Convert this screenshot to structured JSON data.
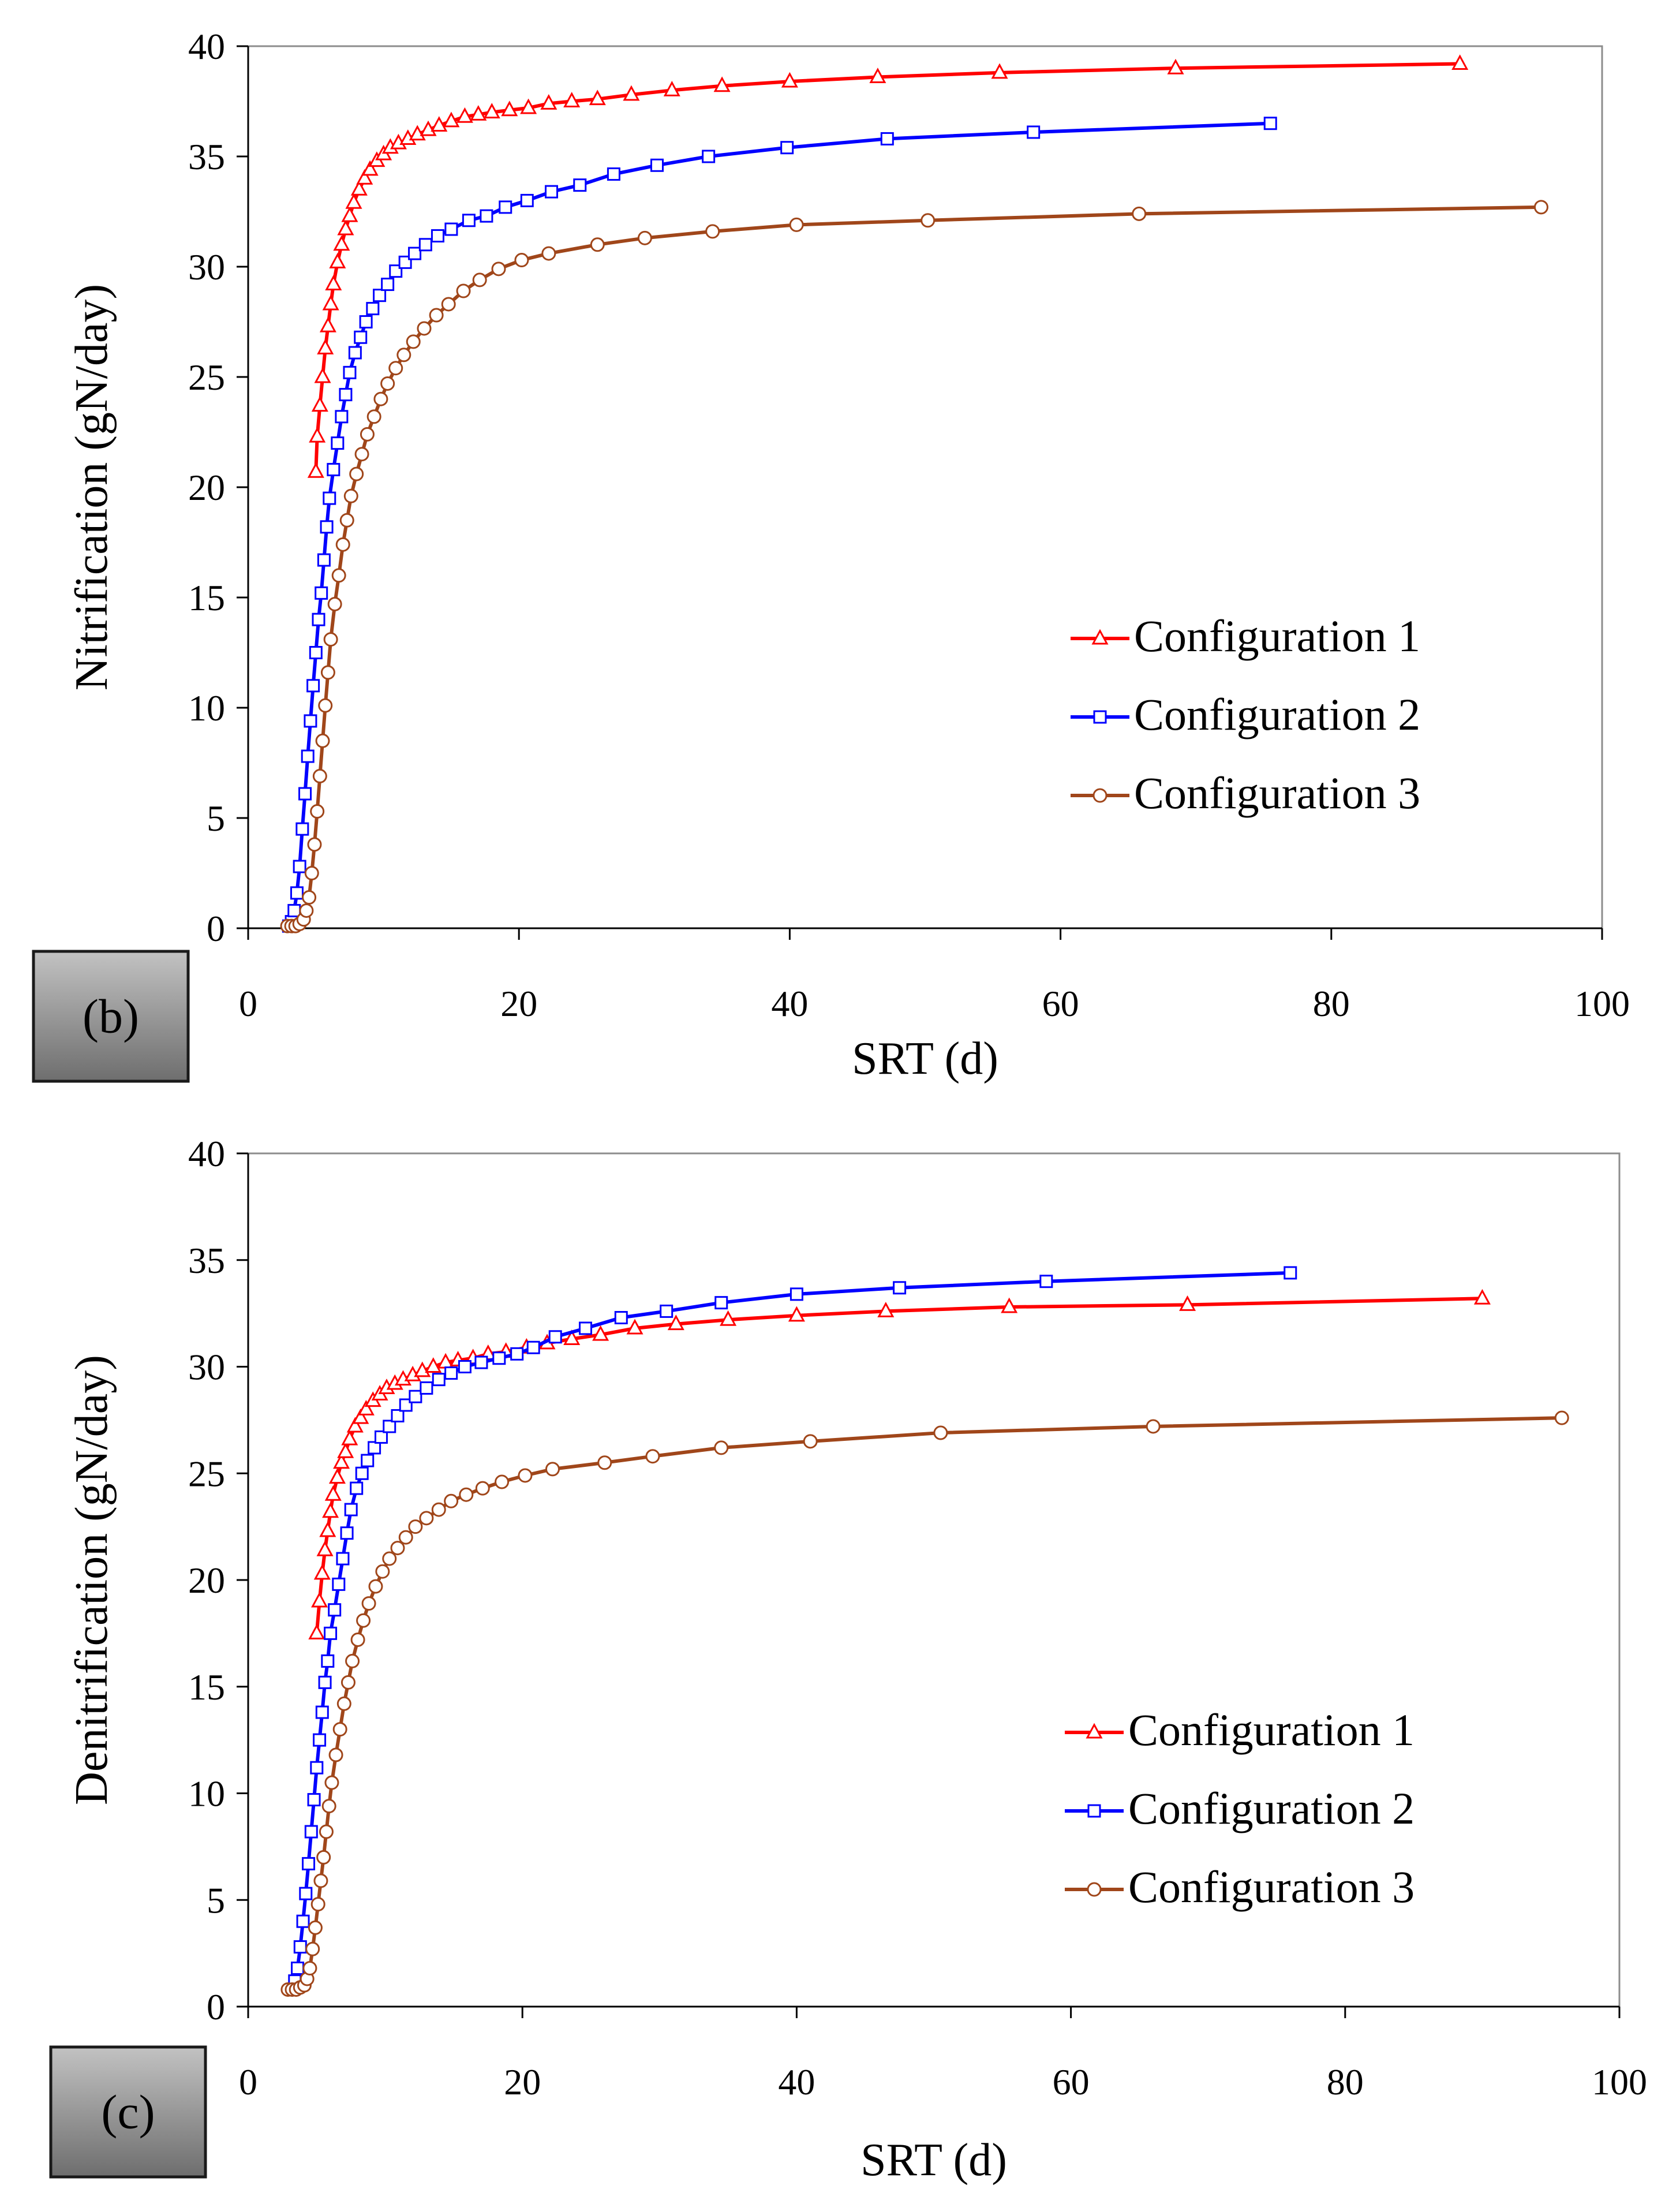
{
  "chart_data": [
    {
      "type": "line",
      "panel_label": "(b)",
      "xlabel": "SRT (d)",
      "ylabel": "Nitrification (gN/day)",
      "xlim": [
        0,
        100
      ],
      "ylim": [
        0,
        40
      ],
      "xticks": [
        0,
        20,
        40,
        60,
        80,
        100
      ],
      "yticks": [
        0,
        5,
        10,
        15,
        20,
        25,
        30,
        35,
        40
      ],
      "grid": false,
      "legend_position": "center-right",
      "series": [
        {
          "name": "Configuration 1",
          "color": "#ff0000",
          "marker": "triangle",
          "x": [
            5.0,
            5.1,
            5.3,
            5.5,
            5.7,
            5.9,
            6.1,
            6.3,
            6.6,
            6.9,
            7.2,
            7.5,
            7.8,
            8.2,
            8.6,
            9.0,
            9.5,
            10.0,
            10.5,
            11.1,
            11.8,
            12.5,
            13.3,
            14.1,
            15.0,
            16.0,
            17.0,
            18.0,
            19.3,
            20.7,
            22.2,
            23.9,
            25.8,
            28.3,
            31.3,
            35.0,
            40.0,
            46.5,
            55.5,
            68.5,
            89.5
          ],
          "y": [
            20.7,
            22.3,
            23.7,
            25.0,
            26.3,
            27.3,
            28.3,
            29.2,
            30.2,
            31.0,
            31.7,
            32.3,
            32.9,
            33.5,
            34.0,
            34.4,
            34.8,
            35.1,
            35.4,
            35.6,
            35.8,
            36.0,
            36.2,
            36.4,
            36.6,
            36.8,
            36.9,
            37.0,
            37.1,
            37.2,
            37.4,
            37.5,
            37.6,
            37.8,
            38.0,
            38.2,
            38.4,
            38.6,
            38.8,
            39.0,
            39.2
          ]
        },
        {
          "name": "Configuration 2",
          "color": "#0000ff",
          "marker": "square",
          "x": [
            3.0,
            3.2,
            3.4,
            3.6,
            3.8,
            4.0,
            4.2,
            4.4,
            4.6,
            4.8,
            5.0,
            5.2,
            5.4,
            5.6,
            5.8,
            6.0,
            6.3,
            6.6,
            6.9,
            7.2,
            7.5,
            7.9,
            8.3,
            8.7,
            9.2,
            9.7,
            10.3,
            10.9,
            11.6,
            12.3,
            13.1,
            14.0,
            15.0,
            16.3,
            17.6,
            19.0,
            20.6,
            22.4,
            24.5,
            27.0,
            30.2,
            34.0,
            39.8,
            47.2,
            58.0,
            75.5
          ],
          "y": [
            0.1,
            0.3,
            0.8,
            1.6,
            2.8,
            4.5,
            6.1,
            7.8,
            9.4,
            11.0,
            12.5,
            14.0,
            15.2,
            16.7,
            18.2,
            19.5,
            20.8,
            22.0,
            23.2,
            24.2,
            25.2,
            26.1,
            26.8,
            27.5,
            28.1,
            28.7,
            29.2,
            29.8,
            30.2,
            30.6,
            31.0,
            31.4,
            31.7,
            32.1,
            32.3,
            32.7,
            33.0,
            33.4,
            33.7,
            34.2,
            34.6,
            35.0,
            35.4,
            35.8,
            36.1,
            36.5
          ]
        },
        {
          "name": "Configuration 3",
          "color": "#a0461a",
          "marker": "circle",
          "x": [
            2.9,
            3.2,
            3.5,
            3.8,
            4.1,
            4.3,
            4.5,
            4.7,
            4.9,
            5.1,
            5.3,
            5.5,
            5.7,
            5.9,
            6.1,
            6.4,
            6.7,
            7.0,
            7.3,
            7.6,
            8.0,
            8.4,
            8.8,
            9.3,
            9.8,
            10.3,
            10.9,
            11.5,
            12.2,
            13.0,
            13.9,
            14.8,
            15.9,
            17.1,
            18.5,
            20.2,
            22.2,
            25.8,
            29.3,
            34.3,
            40.5,
            50.2,
            65.8,
            95.5
          ],
          "y": [
            0.1,
            0.1,
            0.1,
            0.2,
            0.4,
            0.8,
            1.4,
            2.5,
            3.8,
            5.3,
            6.9,
            8.5,
            10.1,
            11.6,
            13.1,
            14.7,
            16.0,
            17.4,
            18.5,
            19.6,
            20.6,
            21.5,
            22.4,
            23.2,
            24.0,
            24.7,
            25.4,
            26.0,
            26.6,
            27.2,
            27.8,
            28.3,
            28.9,
            29.4,
            29.9,
            30.3,
            30.6,
            31.0,
            31.3,
            31.6,
            31.9,
            32.1,
            32.4,
            32.7
          ]
        }
      ]
    },
    {
      "type": "line",
      "panel_label": "(c)",
      "xlabel": "SRT (d)",
      "ylabel": "Denitrification (gN/day)",
      "xlim": [
        0,
        100
      ],
      "ylim": [
        0,
        40
      ],
      "xticks": [
        0,
        20,
        40,
        60,
        80,
        100
      ],
      "yticks": [
        0,
        5,
        10,
        15,
        20,
        25,
        30,
        35,
        40
      ],
      "grid": false,
      "legend_position": "center-right",
      "series": [
        {
          "name": "Configuration 1",
          "color": "#ff0000",
          "marker": "triangle",
          "x": [
            5.0,
            5.2,
            5.4,
            5.6,
            5.8,
            6.0,
            6.2,
            6.5,
            6.8,
            7.1,
            7.4,
            7.8,
            8.2,
            8.6,
            9.1,
            9.6,
            10.1,
            10.7,
            11.3,
            12.0,
            12.7,
            13.5,
            14.4,
            15.3,
            16.4,
            17.5,
            18.8,
            20.3,
            21.8,
            23.6,
            25.7,
            28.2,
            31.2,
            35.0,
            40.0,
            46.5,
            55.5,
            68.5,
            90.0
          ],
          "y": [
            17.5,
            19.0,
            20.3,
            21.4,
            22.3,
            23.2,
            24.0,
            24.8,
            25.5,
            26.0,
            26.6,
            27.2,
            27.6,
            28.0,
            28.4,
            28.7,
            29.0,
            29.2,
            29.4,
            29.6,
            29.8,
            30.0,
            30.2,
            30.3,
            30.4,
            30.6,
            30.7,
            30.9,
            31.1,
            31.3,
            31.5,
            31.8,
            32.0,
            32.2,
            32.4,
            32.6,
            32.8,
            32.9,
            33.2
          ]
        },
        {
          "name": "Configuration 2",
          "color": "#0000ff",
          "marker": "square",
          "x": [
            3.2,
            3.4,
            3.6,
            3.8,
            4.0,
            4.2,
            4.4,
            4.6,
            4.8,
            5.0,
            5.2,
            5.4,
            5.6,
            5.8,
            6.0,
            6.3,
            6.6,
            6.9,
            7.2,
            7.5,
            7.9,
            8.3,
            8.7,
            9.2,
            9.7,
            10.3,
            10.9,
            11.5,
            12.2,
            13.0,
            13.9,
            14.8,
            15.8,
            17.0,
            18.3,
            19.6,
            20.8,
            22.4,
            24.6,
            27.2,
            30.5,
            34.5,
            40.0,
            47.5,
            58.2,
            76.0
          ],
          "y": [
            0.8,
            1.2,
            1.8,
            2.8,
            4.0,
            5.3,
            6.7,
            8.2,
            9.7,
            11.2,
            12.5,
            13.8,
            15.2,
            16.2,
            17.5,
            18.6,
            19.8,
            21.0,
            22.2,
            23.3,
            24.3,
            25.0,
            25.6,
            26.2,
            26.7,
            27.2,
            27.7,
            28.2,
            28.6,
            29.0,
            29.4,
            29.7,
            30.0,
            30.2,
            30.4,
            30.6,
            30.9,
            31.4,
            31.8,
            32.3,
            32.6,
            33.0,
            33.4,
            33.7,
            34.0,
            34.4
          ]
        },
        {
          "name": "Configuration 3",
          "color": "#a0461a",
          "marker": "circle",
          "x": [
            2.9,
            3.2,
            3.5,
            3.8,
            4.1,
            4.3,
            4.5,
            4.7,
            4.9,
            5.1,
            5.3,
            5.5,
            5.7,
            5.9,
            6.1,
            6.4,
            6.7,
            7.0,
            7.3,
            7.6,
            8.0,
            8.4,
            8.8,
            9.3,
            9.8,
            10.3,
            10.9,
            11.5,
            12.2,
            13.0,
            13.9,
            14.8,
            15.9,
            17.1,
            18.5,
            20.2,
            22.2,
            26.0,
            29.5,
            34.5,
            41.0,
            50.5,
            66.0,
            95.8
          ],
          "y": [
            0.8,
            0.8,
            0.8,
            0.9,
            1.0,
            1.3,
            1.8,
            2.7,
            3.7,
            4.8,
            5.9,
            7.0,
            8.2,
            9.4,
            10.5,
            11.8,
            13.0,
            14.2,
            15.2,
            16.2,
            17.2,
            18.1,
            18.9,
            19.7,
            20.4,
            21.0,
            21.5,
            22.0,
            22.5,
            22.9,
            23.3,
            23.7,
            24.0,
            24.3,
            24.6,
            24.9,
            25.2,
            25.5,
            25.8,
            26.2,
            26.5,
            26.9,
            27.2,
            27.6
          ]
        }
      ]
    }
  ]
}
